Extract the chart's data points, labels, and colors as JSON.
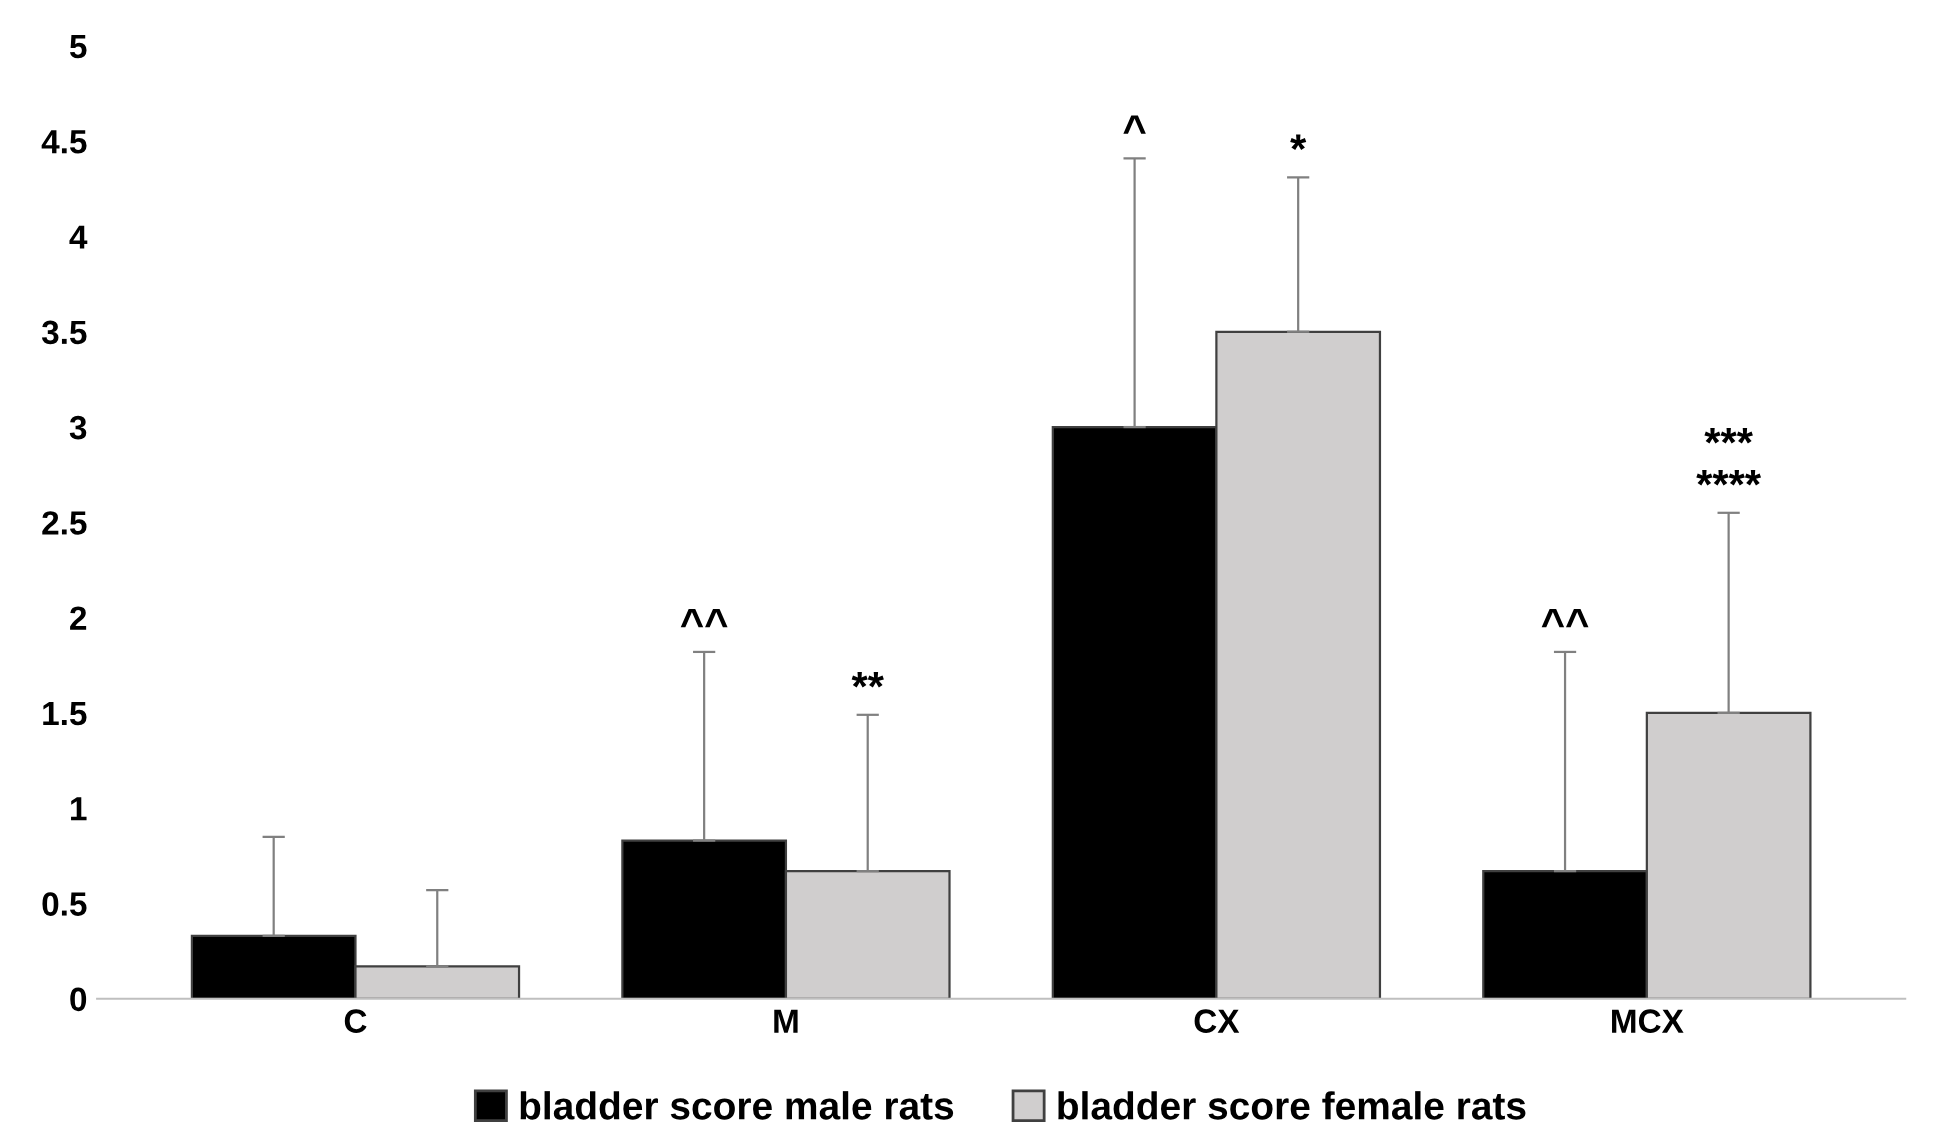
{
  "chart_data": {
    "type": "bar",
    "categories": [
      "C",
      "M",
      "CX",
      "MCX"
    ],
    "series": [
      {
        "name": "bladder score male rats",
        "color": "#000000",
        "values": [
          0.33,
          0.83,
          3.0,
          0.67
        ],
        "errors": [
          [
            0.33,
            0.85
          ],
          [
            0.83,
            1.82
          ],
          [
            3.0,
            4.41
          ],
          [
            0.67,
            1.82
          ]
        ]
      },
      {
        "name": "bladder score female rats",
        "color": "#d0cece",
        "values": [
          0.17,
          0.67,
          3.5,
          1.5
        ],
        "errors": [
          [
            0.17,
            0.57
          ],
          [
            0.67,
            1.49
          ],
          [
            3.5,
            4.31
          ],
          [
            1.5,
            2.55
          ]
        ]
      }
    ],
    "ylim": [
      0,
      5
    ],
    "yticks": [
      0,
      0.5,
      1,
      1.5,
      2,
      2.5,
      3,
      3.5,
      4,
      4.5,
      5
    ],
    "grid": false,
    "legend": "bottom",
    "annotations": [
      "^^",
      "**",
      "^",
      "*",
      "^^",
      "***\n****"
    ]
  }
}
